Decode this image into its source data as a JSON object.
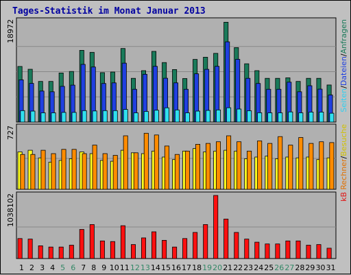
{
  "chart_data": {
    "type": "bar",
    "title": "Tages-Statistik im Monat Januar 2013",
    "categories": [
      "1",
      "2",
      "3",
      "4",
      "5",
      "6",
      "7",
      "8",
      "9",
      "10",
      "11",
      "12",
      "13",
      "14",
      "15",
      "16",
      "17",
      "18",
      "19",
      "20",
      "21",
      "22",
      "23",
      "24",
      "25",
      "26",
      "27",
      "28",
      "29",
      "30",
      "31"
    ],
    "weekend_days": [
      "5",
      "6",
      "12",
      "13",
      "19",
      "20",
      "26",
      "27"
    ],
    "colors": {
      "title": "#0000a0",
      "background": "#c0c0c0",
      "plot": "#b0b0b0",
      "grid": "#888888",
      "day_label": "#000000",
      "weekend_label": "#338866"
    },
    "panels": [
      {
        "id": "top",
        "y_max_label": "18972",
        "ylim": [
          0,
          18972
        ],
        "series": [
          {
            "name": "Anfragen",
            "color": "#1a7a5a",
            "label_color": "#1a7a5a",
            "values": [
              10470,
              9940,
              7650,
              7650,
              9240,
              9530,
              13500,
              13120,
              9300,
              9420,
              13850,
              8230,
              9680,
              13310,
              11200,
              9880,
              8190,
              11800,
              12210,
              12930,
              18790,
              14020,
              10970,
              9680,
              8230,
              8230,
              8330,
              7650,
              8230,
              8230,
              6980
            ]
          },
          {
            "name": "Dateien",
            "color": "#2040e0",
            "label_color": "#2040e0",
            "values": [
              7950,
              7280,
              5830,
              5710,
              6720,
              6960,
              10850,
              10360,
              7270,
              7380,
              11090,
              6170,
              8990,
              10490,
              8250,
              7380,
              6170,
              9090,
              9930,
              10490,
              15100,
              11810,
              8230,
              7270,
              6170,
              6170,
              7510,
              5710,
              6840,
              6200,
              5100
            ]
          },
          {
            "name": "Seiten",
            "color": "#30e0f0",
            "label_color": "#30d0f0",
            "values": [
              2160,
              2070,
              1740,
              1740,
              1820,
              1820,
              2160,
              2090,
              2160,
              2160,
              2370,
              1740,
              2000,
              2230,
              2680,
              2280,
              1740,
              2070,
              2200,
              2280,
              2700,
              2450,
              2130,
              1760,
              1740,
              1740,
              1910,
              1740,
              1880,
              1880,
              1660
            ]
          }
        ]
      },
      {
        "id": "middle",
        "y_max_label": "727",
        "ylim": [
          0,
          727
        ],
        "series": [
          {
            "name": "Besuche",
            "color": "#ffff20",
            "label_color": "#d0c000",
            "values": [
              440,
              460,
              370,
              320,
              340,
              360,
              440,
              420,
              340,
              330,
              460,
              430,
              420,
              450,
              380,
              350,
              450,
              480,
              440,
              450,
              460,
              450,
              360,
              380,
              390,
              360,
              380,
              370,
              380,
              350,
              370
            ]
          },
          {
            "name": "Rechner",
            "color": "#ff8c00",
            "label_color": "#e07000",
            "values": [
              410,
              410,
              460,
              420,
              470,
              470,
              420,
              520,
              420,
              400,
              630,
              430,
              660,
              640,
              510,
              410,
              450,
              530,
              540,
              560,
              630,
              560,
              450,
              570,
              540,
              620,
              520,
              610,
              540,
              560,
              550
            ]
          }
        ]
      },
      {
        "id": "bottom",
        "y_max_label": "1038102",
        "ylim": [
          0,
          1038102
        ],
        "series": [
          {
            "name": "kB",
            "color": "#ff1010",
            "label_color": "#e01010",
            "values": [
              330000,
              320000,
              210000,
              190000,
              190000,
              220000,
              480000,
              560000,
              290000,
              280000,
              540000,
              230000,
              340000,
              440000,
              300000,
              190000,
              330000,
              430000,
              560000,
              1038102,
              650000,
              430000,
              320000,
              270000,
              240000,
              240000,
              290000,
              290000,
              220000,
              230000,
              170000
            ]
          }
        ]
      }
    ]
  }
}
